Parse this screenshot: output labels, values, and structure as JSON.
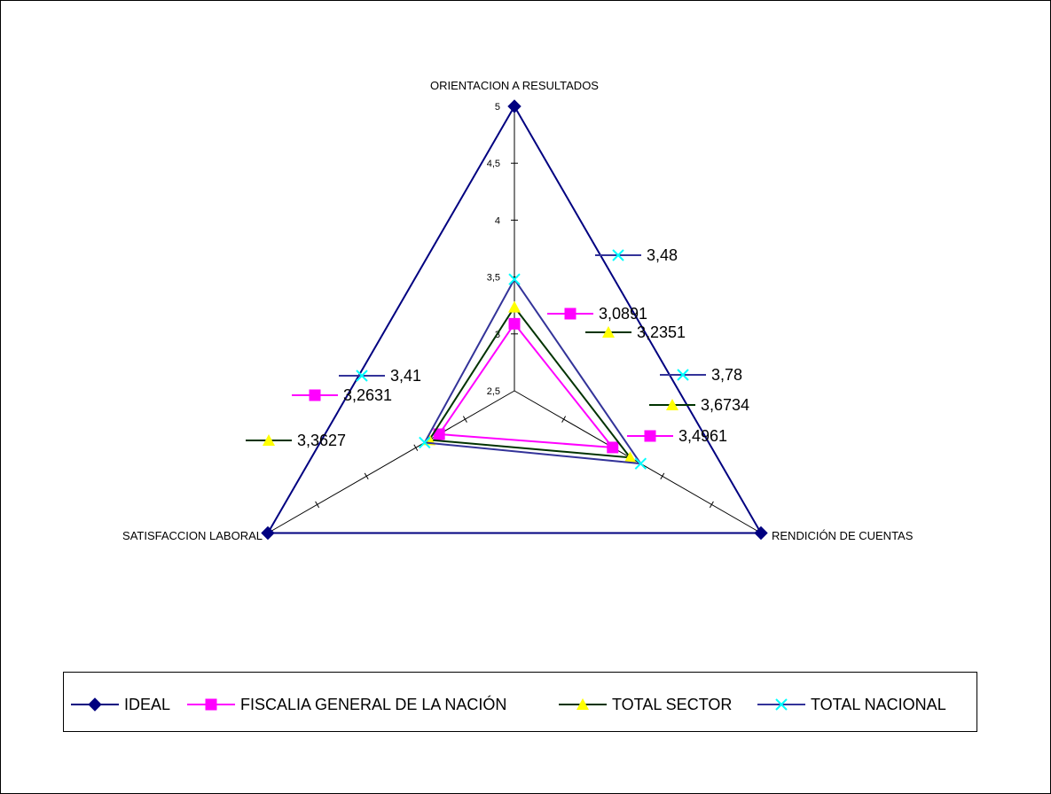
{
  "chart_data": {
    "type": "radar",
    "axes": [
      "ORIENTACION A RESULTADOS",
      "RENDICIÓN DE CUENTAS",
      "SATISFACCION LABORAL"
    ],
    "scale": {
      "min": 2.5,
      "max": 5,
      "step": 0.5,
      "tick_labels": [
        "2,5",
        "3",
        "3,5",
        "4",
        "4,5",
        "5"
      ]
    },
    "series": [
      {
        "name": "IDEAL",
        "values": [
          5,
          5,
          5
        ],
        "color": "#000080",
        "marker": "diamond",
        "labels": [
          "",
          "",
          ""
        ]
      },
      {
        "name": "FISCALIA GENERAL DE LA NACIÓN",
        "values": [
          3.0891,
          3.4961,
          3.2631
        ],
        "color": "#FF00FF",
        "marker": "square",
        "labels": [
          "3,0891",
          "3,4961",
          "3,2631"
        ]
      },
      {
        "name": "TOTAL SECTOR",
        "values": [
          3.2351,
          3.6734,
          3.3627
        ],
        "color": "#003300",
        "marker": "triangle",
        "marker_color": "#FFFF00",
        "labels": [
          "3,2351",
          "3,6734",
          "3,3627"
        ]
      },
      {
        "name": "TOTAL NACIONAL",
        "values": [
          3.48,
          3.78,
          3.41
        ],
        "color": "#333399",
        "marker": "x",
        "marker_color": "#00FFFF",
        "labels": [
          "3,48",
          "3,78",
          "3,41"
        ]
      }
    ],
    "legend_position": "bottom"
  }
}
